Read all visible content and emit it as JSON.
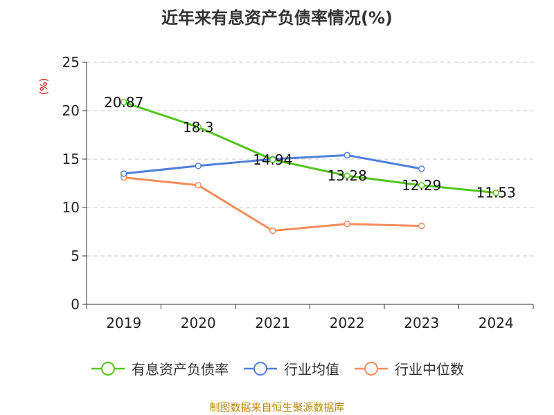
{
  "title": "近年来有息资产负债率情况(%)",
  "source": "制图数据来自恒生聚源数据库",
  "chart_data": {
    "type": "line",
    "title": "近年来有息资产负债率情况(%)",
    "ylabel": "(%)",
    "categories": [
      "2019",
      "2020",
      "2021",
      "2022",
      "2023",
      "2024"
    ],
    "ylim": [
      0,
      25
    ],
    "yticks": [
      0,
      5,
      10,
      15,
      20,
      25
    ],
    "grid": "horizontal-dashed",
    "legend_position": "bottom",
    "series": [
      {
        "name": "有息资产负债率",
        "color": "#52c41a",
        "values": [
          20.87,
          18.3,
          14.94,
          13.28,
          12.29,
          11.53
        ],
        "labels": [
          "20.87",
          "18.3",
          "14.94",
          "13.28",
          "12.29",
          "11.53"
        ]
      },
      {
        "name": "行业均值",
        "color": "#4f7fdb",
        "values": [
          13.5,
          14.3,
          15.0,
          15.4,
          14.0,
          null
        ]
      },
      {
        "name": "行业中位数",
        "color": "#f28c5c",
        "values": [
          13.1,
          12.3,
          7.6,
          8.3,
          8.1,
          null
        ]
      }
    ]
  }
}
